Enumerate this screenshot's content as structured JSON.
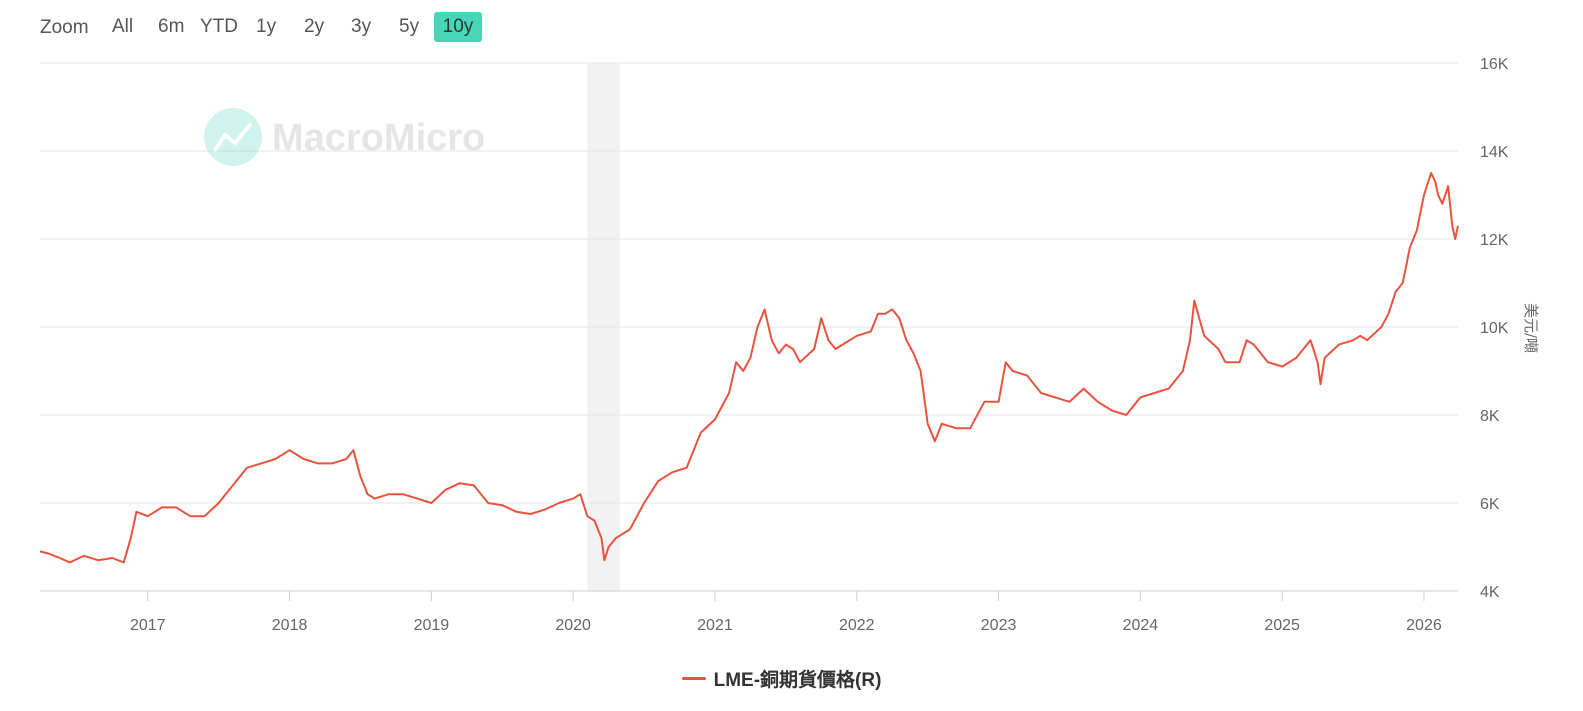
{
  "zoom": {
    "label": "Zoom",
    "buttons": [
      "All",
      "6m",
      "YTD",
      "1y",
      "2y",
      "3y",
      "5y",
      "10y"
    ],
    "selected": "10y",
    "active_color": "#46d7b9"
  },
  "watermark": {
    "text": "MacroMicro",
    "icon": "chart-trend-icon",
    "color": "#46d7b9"
  },
  "colors": {
    "series": "#e8533f",
    "grid": "#e6e6e6",
    "axis": "#cccccc",
    "recession_band": "#f2f2f2",
    "tick_text": "#666666"
  },
  "chart_data": {
    "type": "line",
    "title": "",
    "xlabel": "",
    "ylabel": "美元/噸",
    "y_axis_side": "right",
    "ylim": [
      4000,
      16000
    ],
    "y_ticks": [
      4000,
      6000,
      8000,
      10000,
      12000,
      14000,
      16000
    ],
    "y_tick_labels": [
      "4K",
      "6K",
      "8K",
      "10K",
      "12K",
      "14K",
      "16K"
    ],
    "xlim": [
      2016.24,
      2026.24
    ],
    "x_ticks": [
      2017,
      2018,
      2019,
      2020,
      2021,
      2022,
      2023,
      2024,
      2025,
      2026
    ],
    "x_tick_labels": [
      "2017",
      "2018",
      "2019",
      "2020",
      "2021",
      "2022",
      "2023",
      "2024",
      "2025",
      "2026"
    ],
    "grid": true,
    "legend_position": "bottom-center",
    "shaded_periods": [
      {
        "start": 2020.1,
        "end": 2020.33
      }
    ],
    "series": [
      {
        "name": "LME-銅期貨價格(R)",
        "color": "#e8533f",
        "x": [
          2016.24,
          2016.3,
          2016.38,
          2016.45,
          2016.55,
          2016.65,
          2016.75,
          2016.83,
          2016.88,
          2016.92,
          2017.0,
          2017.1,
          2017.2,
          2017.3,
          2017.4,
          2017.5,
          2017.6,
          2017.7,
          2017.8,
          2017.9,
          2018.0,
          2018.1,
          2018.2,
          2018.3,
          2018.4,
          2018.45,
          2018.5,
          2018.55,
          2018.6,
          2018.7,
          2018.8,
          2018.9,
          2019.0,
          2019.1,
          2019.2,
          2019.3,
          2019.4,
          2019.5,
          2019.6,
          2019.7,
          2019.8,
          2019.9,
          2020.0,
          2020.05,
          2020.1,
          2020.15,
          2020.2,
          2020.22,
          2020.25,
          2020.3,
          2020.4,
          2020.5,
          2020.6,
          2020.7,
          2020.8,
          2020.9,
          2021.0,
          2021.1,
          2021.15,
          2021.2,
          2021.25,
          2021.3,
          2021.35,
          2021.4,
          2021.45,
          2021.5,
          2021.55,
          2021.6,
          2021.7,
          2021.75,
          2021.8,
          2021.85,
          2021.9,
          2022.0,
          2022.1,
          2022.15,
          2022.2,
          2022.25,
          2022.3,
          2022.35,
          2022.4,
          2022.45,
          2022.5,
          2022.55,
          2022.6,
          2022.7,
          2022.8,
          2022.9,
          2023.0,
          2023.05,
          2023.1,
          2023.2,
          2023.3,
          2023.4,
          2023.5,
          2023.6,
          2023.7,
          2023.8,
          2023.9,
          2024.0,
          2024.1,
          2024.2,
          2024.3,
          2024.35,
          2024.38,
          2024.45,
          2024.55,
          2024.6,
          2024.7,
          2024.75,
          2024.8,
          2024.9,
          2025.0,
          2025.1,
          2025.2,
          2025.25,
          2025.27,
          2025.3,
          2025.4,
          2025.5,
          2025.55,
          2025.6,
          2025.7,
          2025.75,
          2025.8,
          2025.85,
          2025.9,
          2025.95,
          2026.0,
          2026.05,
          2026.08,
          2026.1,
          2026.13,
          2026.17,
          2026.2,
          2026.22,
          2026.24
        ],
        "values": [
          4900,
          4850,
          4750,
          4650,
          4800,
          4700,
          4750,
          4650,
          5200,
          5800,
          5700,
          5900,
          5900,
          5700,
          5700,
          6000,
          6400,
          6800,
          6900,
          7000,
          7200,
          7000,
          6900,
          6900,
          7000,
          7200,
          6600,
          6200,
          6100,
          6200,
          6200,
          6100,
          6000,
          6300,
          6450,
          6400,
          6000,
          5950,
          5800,
          5750,
          5850,
          6000,
          6100,
          6200,
          5700,
          5600,
          5200,
          4700,
          5000,
          5200,
          5400,
          6000,
          6500,
          6700,
          6800,
          7600,
          7900,
          8500,
          9200,
          9000,
          9300,
          10000,
          10400,
          9700,
          9400,
          9600,
          9500,
          9200,
          9500,
          10200,
          9700,
          9500,
          9600,
          9800,
          9900,
          10300,
          10300,
          10400,
          10200,
          9700,
          9400,
          9000,
          7800,
          7400,
          7800,
          7700,
          7700,
          8300,
          8300,
          9200,
          9000,
          8900,
          8500,
          8400,
          8300,
          8600,
          8300,
          8100,
          8000,
          8400,
          8500,
          8600,
          9000,
          9700,
          10600,
          9800,
          9500,
          9200,
          9200,
          9700,
          9600,
          9200,
          9100,
          9300,
          9700,
          9200,
          8700,
          9300,
          9600,
          9700,
          9800,
          9700,
          10000,
          10300,
          10800,
          11000,
          11800,
          12200,
          13000,
          13500,
          13300,
          13000,
          12800,
          13200,
          12300,
          12000,
          12300
        ]
      }
    ]
  }
}
